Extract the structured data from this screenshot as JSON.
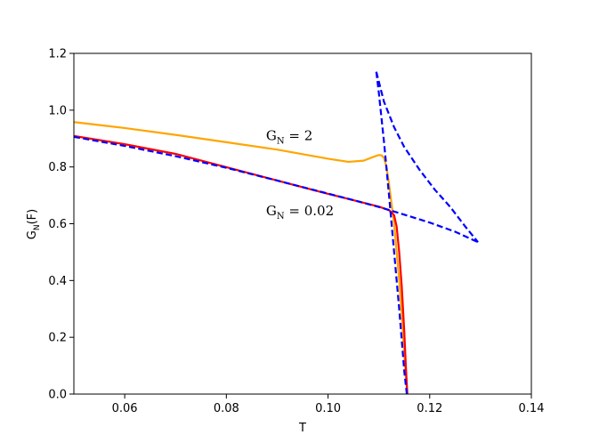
{
  "chart_data": {
    "type": "line",
    "xlabel": "T",
    "ylabel": {
      "main": "G",
      "sub": "N",
      "tail": "(F)"
    },
    "xlim": [
      0.05,
      0.14
    ],
    "ylim": [
      0.0,
      1.2
    ],
    "grid": false,
    "xticks": [
      0.06,
      0.08,
      0.1,
      0.12,
      0.14
    ],
    "xtick_labels": [
      "0.06",
      "0.08",
      "0.10",
      "0.12",
      "0.14"
    ],
    "yticks": [
      0.0,
      0.2,
      0.4,
      0.6,
      0.8,
      1.0,
      1.2
    ],
    "ytick_labels": [
      "0.0",
      "0.2",
      "0.4",
      "0.6",
      "0.8",
      "1.0",
      "1.2"
    ],
    "annotations": [
      {
        "main": "G",
        "sub": "N",
        "tail": " = 2",
        "x": 0.0878,
        "y": 0.895
      },
      {
        "main": "G",
        "sub": "N",
        "tail": " = 0.02",
        "x": 0.0878,
        "y": 0.63
      }
    ],
    "series": [
      {
        "color": "#FFA500",
        "style": "solid",
        "x": [
          0.05,
          0.06,
          0.07,
          0.08,
          0.09,
          0.1,
          0.104,
          0.107,
          0.109,
          0.11,
          0.1105,
          0.111,
          0.1115,
          0.112,
          0.113,
          0.114,
          0.1145,
          0.115,
          0.1153,
          0.1156
        ],
        "y": [
          0.958,
          0.937,
          0.913,
          0.887,
          0.861,
          0.829,
          0.818,
          0.822,
          0.836,
          0.842,
          0.841,
          0.832,
          0.8,
          0.74,
          0.6,
          0.4,
          0.28,
          0.14,
          0.06,
          0.0
        ]
      },
      {
        "color": "#FF0000",
        "style": "solid",
        "x": [
          0.05,
          0.06,
          0.07,
          0.08,
          0.09,
          0.1,
          0.105,
          0.11,
          0.112,
          0.113,
          0.1135,
          0.114,
          0.1145,
          0.115,
          0.1153,
          0.1156
        ],
        "y": [
          0.909,
          0.88,
          0.846,
          0.799,
          0.752,
          0.705,
          0.683,
          0.66,
          0.648,
          0.63,
          0.59,
          0.5,
          0.38,
          0.22,
          0.1,
          0.0
        ]
      },
      {
        "color": "#0000FF",
        "style": "dashed",
        "x": [
          0.05,
          0.06,
          0.07,
          0.08,
          0.09,
          0.1,
          0.105,
          0.11,
          0.115,
          0.12,
          0.125,
          0.1295
        ],
        "y": [
          0.906,
          0.874,
          0.838,
          0.797,
          0.752,
          0.706,
          0.683,
          0.659,
          0.632,
          0.604,
          0.572,
          0.535
        ]
      },
      {
        "color": "#0000FF",
        "style": "dashed",
        "x": [
          0.1095,
          0.11,
          0.111,
          0.112,
          0.113,
          0.114,
          0.1145,
          0.115,
          0.1155
        ],
        "y": [
          1.135,
          1.06,
          0.89,
          0.7,
          0.5,
          0.3,
          0.19,
          0.08,
          0.0
        ]
      },
      {
        "color": "#0000FF",
        "style": "dashed",
        "x": [
          0.1095,
          0.111,
          0.113,
          0.115,
          0.118,
          0.121,
          0.124,
          0.127,
          0.1295
        ],
        "y": [
          1.135,
          1.03,
          0.94,
          0.87,
          0.79,
          0.72,
          0.66,
          0.59,
          0.535
        ]
      }
    ]
  }
}
